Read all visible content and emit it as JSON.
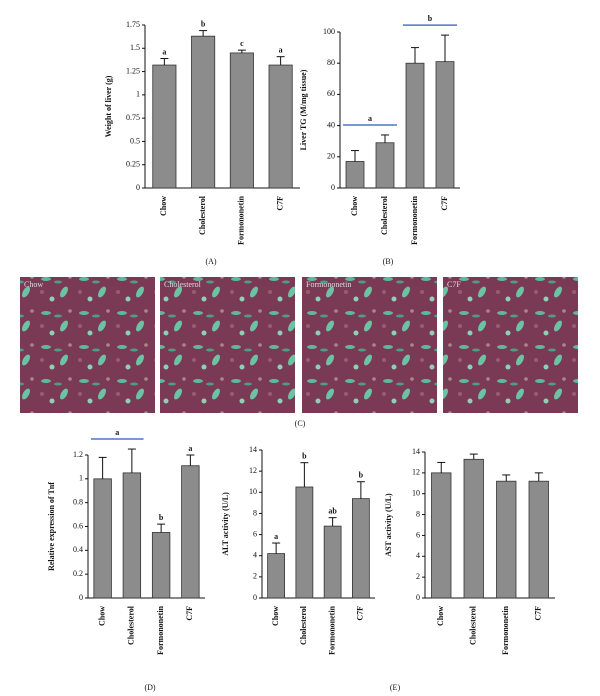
{
  "chart_data": [
    {
      "type": "bar",
      "ylabel": "Weight of liver (g)",
      "categories": [
        "Chow",
        "Cholesterol",
        "Formononetin",
        "C7F"
      ],
      "values": [
        1.32,
        1.63,
        1.45,
        1.32
      ],
      "errors": [
        0.07,
        0.06,
        0.03,
        0.09
      ],
      "letters": [
        "a",
        "b",
        "c",
        "a"
      ],
      "color": "#8c8c8c",
      "ylim": [
        0,
        1.75
      ],
      "yticks": [
        0,
        0.25,
        0.5,
        0.75,
        1,
        1.25,
        1.5,
        1.75
      ]
    },
    {
      "type": "bar",
      "ylabel": "Liver TG (M/mg tissue)",
      "categories": [
        "Chow",
        "Cholesterol",
        "Formononetin",
        "C7F"
      ],
      "values": [
        17,
        29,
        80,
        81
      ],
      "errors": [
        7,
        5,
        10,
        17
      ],
      "letter_groups": [
        {
          "label": "a",
          "categories": [
            "Chow",
            "Cholesterol"
          ]
        },
        {
          "label": "b",
          "categories": [
            "Formononetin",
            "C7F"
          ]
        }
      ],
      "color": "#8c8c8c",
      "ylim": [
        0,
        100
      ],
      "yticks": [
        0,
        20,
        40,
        60,
        80,
        100
      ]
    },
    {
      "type": "bar",
      "ylabel": "Relative expression of Tnf",
      "categories": [
        "Chow",
        "Cholesterol",
        "Formononetin",
        "C7F"
      ],
      "values": [
        1.0,
        1.05,
        0.55,
        1.11
      ],
      "errors": [
        0.18,
        0.2,
        0.07,
        0.09
      ],
      "letters": [
        null,
        null,
        "b",
        "a"
      ],
      "letter_groups": [
        {
          "label": "a",
          "categories": [
            "Chow",
            "Cholesterol"
          ]
        }
      ],
      "color": "#8c8c8c",
      "ylim": [
        0,
        1.2
      ],
      "yticks": [
        0,
        0.2,
        0.4,
        0.6,
        0.8,
        1,
        1.2
      ]
    },
    {
      "type": "bar",
      "ylabel": "ALT activity (U/L)",
      "categories": [
        "Chow",
        "Cholesterol",
        "Formononetin",
        "C7F"
      ],
      "values": [
        4.2,
        10.5,
        6.8,
        9.4
      ],
      "errors": [
        1.0,
        2.3,
        0.8,
        1.6
      ],
      "letters": [
        "a",
        "b",
        "ab",
        "b"
      ],
      "color": "#8c8c8c",
      "ylim": [
        0,
        14
      ],
      "yticks": [
        0,
        2,
        4,
        6,
        8,
        10,
        12,
        14
      ]
    },
    {
      "type": "bar",
      "ylabel": "AST activity (U/L)",
      "categories": [
        "Chow",
        "Cholesterol",
        "Formononetin",
        "C7F"
      ],
      "values": [
        12.0,
        13.3,
        11.2,
        11.2
      ],
      "errors": [
        1.0,
        0.5,
        0.6,
        0.8
      ],
      "color": "#8c8c8c",
      "ylim": [
        0,
        14
      ],
      "yticks": [
        0,
        2,
        4,
        6,
        8,
        10,
        12,
        14
      ]
    }
  ],
  "histology": {
    "labels": [
      "Chow",
      "Cholesterol",
      "Formononetin",
      "C7F"
    ]
  },
  "panel_labels": [
    "(A)",
    "(B)",
    "(C)",
    "(D)",
    "(E)"
  ]
}
